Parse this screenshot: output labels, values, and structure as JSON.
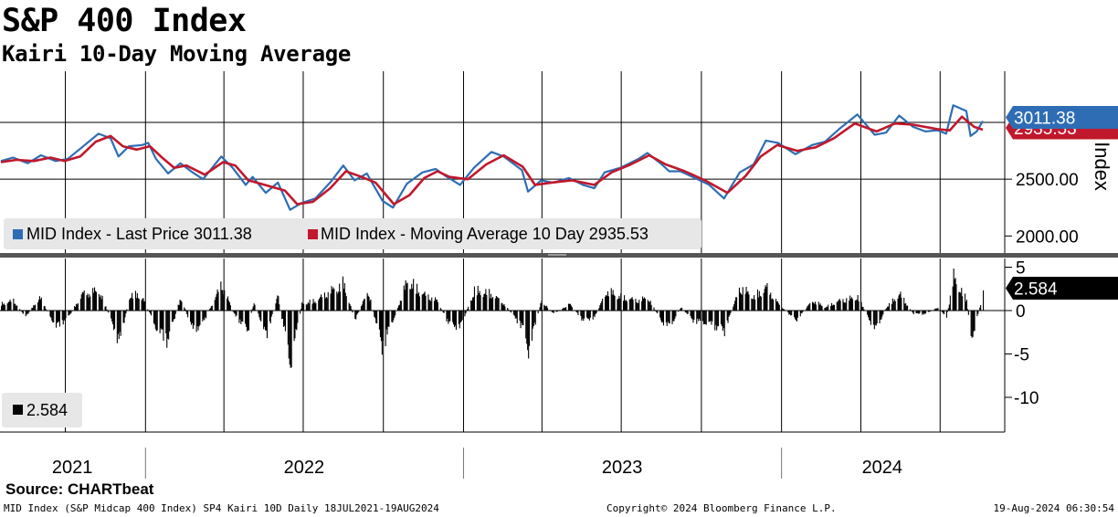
{
  "header": {
    "title": "S&P 400 Index",
    "subtitle": "Kairi 10-Day Moving Average"
  },
  "footer": {
    "source": "Source: CHARTbeat",
    "description": "MID Index (S&P Midcap 400 Index) SP4 Kairi 10D  Daily 18JUL2021-19AUG2024",
    "copyright": "Copyright© 2024 Bloomberg Finance L.P.",
    "timestamp": "19-Aug-2024 06:30:54"
  },
  "colors": {
    "price": "#2e6db4",
    "ma": "#c0182d",
    "kairi": "#000000",
    "grid": "#000000",
    "panel_divider": "#555555"
  },
  "chart_data": [
    {
      "type": "line",
      "panel": "top",
      "ylabel": "Index",
      "ylim": [
        1850,
        3450
      ],
      "yticks": [
        "2500.00",
        "2000.00"
      ],
      "ytick_values": [
        2500,
        2000
      ],
      "legend": [
        {
          "label": "MID Index - Last Price 3011.38",
          "color": "#2e6db4"
        },
        {
          "label": "MID Index - Moving Average 10 Day 2935.53",
          "color": "#c0182d"
        }
      ],
      "last_value_tags": [
        {
          "text": "3011.38",
          "value": 3011.38,
          "color": "#2e6db4"
        },
        {
          "text": "2935.53",
          "value": 2935.53,
          "color": "#c0182d"
        }
      ],
      "x_axis": {
        "start": "2021-07-18",
        "end": "2024-08-19"
      },
      "series": [
        {
          "name": "MID Index - Last Price",
          "key": "price",
          "points": [
            [
              "2021-07-19",
              2660
            ],
            [
              "2021-08-02",
              2690
            ],
            [
              "2021-08-19",
              2640
            ],
            [
              "2021-09-03",
              2710
            ],
            [
              "2021-09-20",
              2660
            ],
            [
              "2021-10-04",
              2680
            ],
            [
              "2021-10-20",
              2780
            ],
            [
              "2021-11-08",
              2900
            ],
            [
              "2021-11-22",
              2860
            ],
            [
              "2021-12-01",
              2700
            ],
            [
              "2021-12-13",
              2790
            ],
            [
              "2021-12-28",
              2800
            ],
            [
              "2022-01-04",
              2820
            ],
            [
              "2022-01-13",
              2680
            ],
            [
              "2022-01-27",
              2550
            ],
            [
              "2022-02-10",
              2640
            ],
            [
              "2022-02-24",
              2560
            ],
            [
              "2022-03-08",
              2500
            ],
            [
              "2022-03-29",
              2700
            ],
            [
              "2022-04-11",
              2600
            ],
            [
              "2022-04-26",
              2450
            ],
            [
              "2022-05-04",
              2520
            ],
            [
              "2022-05-19",
              2380
            ],
            [
              "2022-06-02",
              2470
            ],
            [
              "2022-06-16",
              2230
            ],
            [
              "2022-06-29",
              2290
            ],
            [
              "2022-07-15",
              2330
            ],
            [
              "2022-08-02",
              2480
            ],
            [
              "2022-08-16",
              2620
            ],
            [
              "2022-08-29",
              2490
            ],
            [
              "2022-09-12",
              2550
            ],
            [
              "2022-09-30",
              2310
            ],
            [
              "2022-10-12",
              2250
            ],
            [
              "2022-10-28",
              2460
            ],
            [
              "2022-11-15",
              2560
            ],
            [
              "2022-11-30",
              2590
            ],
            [
              "2022-12-13",
              2520
            ],
            [
              "2022-12-28",
              2450
            ],
            [
              "2023-01-13",
              2600
            ],
            [
              "2023-02-02",
              2740
            ],
            [
              "2023-02-16",
              2700
            ],
            [
              "2023-03-09",
              2580
            ],
            [
              "2023-03-16",
              2390
            ],
            [
              "2023-03-31",
              2490
            ],
            [
              "2023-04-14",
              2470
            ],
            [
              "2023-05-02",
              2510
            ],
            [
              "2023-05-18",
              2450
            ],
            [
              "2023-05-31",
              2420
            ],
            [
              "2023-06-12",
              2560
            ],
            [
              "2023-06-30",
              2600
            ],
            [
              "2023-07-21",
              2680
            ],
            [
              "2023-07-31",
              2730
            ],
            [
              "2023-08-15",
              2640
            ],
            [
              "2023-08-25",
              2570
            ],
            [
              "2023-09-07",
              2570
            ],
            [
              "2023-09-21",
              2520
            ],
            [
              "2023-10-10",
              2450
            ],
            [
              "2023-10-27",
              2330
            ],
            [
              "2023-11-14",
              2560
            ],
            [
              "2023-11-30",
              2630
            ],
            [
              "2023-12-14",
              2840
            ],
            [
              "2023-12-28",
              2820
            ],
            [
              "2024-01-17",
              2720
            ],
            [
              "2024-02-05",
              2800
            ],
            [
              "2024-02-20",
              2830
            ],
            [
              "2024-03-07",
              2940
            ],
            [
              "2024-03-28",
              3070
            ],
            [
              "2024-04-17",
              2890
            ],
            [
              "2024-04-30",
              2910
            ],
            [
              "2024-05-15",
              3060
            ],
            [
              "2024-05-31",
              2960
            ],
            [
              "2024-06-14",
              2920
            ],
            [
              "2024-06-28",
              2930
            ],
            [
              "2024-07-08",
              2900
            ],
            [
              "2024-07-16",
              3150
            ],
            [
              "2024-07-31",
              3100
            ],
            [
              "2024-08-05",
              2880
            ],
            [
              "2024-08-12",
              2920
            ],
            [
              "2024-08-19",
              3011.38
            ]
          ]
        },
        {
          "name": "MID Index - Moving Average 10 Day",
          "key": "ma",
          "points": [
            [
              "2021-07-19",
              2650
            ],
            [
              "2021-08-06",
              2670
            ],
            [
              "2021-08-26",
              2660
            ],
            [
              "2021-09-14",
              2690
            ],
            [
              "2021-09-30",
              2660
            ],
            [
              "2021-10-18",
              2700
            ],
            [
              "2021-11-05",
              2830
            ],
            [
              "2021-11-22",
              2880
            ],
            [
              "2021-12-06",
              2790
            ],
            [
              "2021-12-22",
              2760
            ],
            [
              "2022-01-06",
              2790
            ],
            [
              "2022-01-20",
              2690
            ],
            [
              "2022-02-03",
              2600
            ],
            [
              "2022-02-17",
              2620
            ],
            [
              "2022-03-10",
              2540
            ],
            [
              "2022-03-31",
              2650
            ],
            [
              "2022-04-14",
              2620
            ],
            [
              "2022-04-29",
              2490
            ],
            [
              "2022-05-13",
              2460
            ],
            [
              "2022-05-27",
              2430
            ],
            [
              "2022-06-10",
              2400
            ],
            [
              "2022-06-24",
              2280
            ],
            [
              "2022-07-12",
              2300
            ],
            [
              "2022-08-01",
              2420
            ],
            [
              "2022-08-19",
              2570
            ],
            [
              "2022-09-06",
              2520
            ],
            [
              "2022-09-22",
              2470
            ],
            [
              "2022-10-13",
              2280
            ],
            [
              "2022-10-31",
              2360
            ],
            [
              "2022-11-17",
              2510
            ],
            [
              "2022-12-02",
              2570
            ],
            [
              "2022-12-16",
              2520
            ],
            [
              "2023-01-06",
              2500
            ],
            [
              "2023-01-27",
              2630
            ],
            [
              "2023-02-16",
              2710
            ],
            [
              "2023-03-10",
              2610
            ],
            [
              "2023-03-24",
              2450
            ],
            [
              "2023-04-12",
              2470
            ],
            [
              "2023-05-05",
              2490
            ],
            [
              "2023-05-31",
              2450
            ],
            [
              "2023-06-20",
              2560
            ],
            [
              "2023-07-12",
              2630
            ],
            [
              "2023-08-02",
              2710
            ],
            [
              "2023-08-21",
              2630
            ],
            [
              "2023-09-12",
              2570
            ],
            [
              "2023-10-05",
              2490
            ],
            [
              "2023-10-31",
              2380
            ],
            [
              "2023-11-21",
              2530
            ],
            [
              "2023-12-08",
              2700
            ],
            [
              "2023-12-27",
              2800
            ],
            [
              "2024-01-19",
              2750
            ],
            [
              "2024-02-09",
              2780
            ],
            [
              "2024-03-01",
              2860
            ],
            [
              "2024-03-25",
              2990
            ],
            [
              "2024-04-19",
              2920
            ],
            [
              "2024-05-10",
              2990
            ],
            [
              "2024-05-31",
              2980
            ],
            [
              "2024-06-28",
              2940
            ],
            [
              "2024-07-12",
              2930
            ],
            [
              "2024-07-26",
              3050
            ],
            [
              "2024-08-09",
              2960
            ],
            [
              "2024-08-19",
              2935.53
            ]
          ]
        }
      ]
    },
    {
      "type": "bar",
      "panel": "bottom",
      "ylim": [
        -14,
        6
      ],
      "yticks": [
        "5",
        "0",
        "-5",
        "-10"
      ],
      "ytick_values": [
        5,
        0,
        -5,
        -10
      ],
      "legend": [
        {
          "label": "2.584",
          "color": "#000000"
        }
      ],
      "last_value_tags": [
        {
          "text": "2.584",
          "value": 2.584,
          "color": "#000000"
        }
      ],
      "series": [
        {
          "name": "Kairi 10D",
          "key": "kairi",
          "anchors": [
            [
              "2021-07-19",
              1
            ],
            [
              "2021-08-02",
              1.5
            ],
            [
              "2021-08-16",
              -1
            ],
            [
              "2021-09-01",
              2
            ],
            [
              "2021-09-20",
              -2.5
            ],
            [
              "2021-10-04",
              -1
            ],
            [
              "2021-10-20",
              2.5
            ],
            [
              "2021-11-08",
              3
            ],
            [
              "2021-11-24",
              -2
            ],
            [
              "2021-12-01",
              -5
            ],
            [
              "2021-12-14",
              2.5
            ],
            [
              "2021-12-28",
              2
            ],
            [
              "2022-01-14",
              -3
            ],
            [
              "2022-01-26",
              -4.5
            ],
            [
              "2022-02-10",
              2
            ],
            [
              "2022-02-24",
              -3
            ],
            [
              "2022-03-07",
              -2
            ],
            [
              "2022-03-29",
              4
            ],
            [
              "2022-04-12",
              -0.5
            ],
            [
              "2022-04-28",
              -3
            ],
            [
              "2022-05-05",
              1.5
            ],
            [
              "2022-05-19",
              -4
            ],
            [
              "2022-06-01",
              2.5
            ],
            [
              "2022-06-16",
              -8
            ],
            [
              "2022-06-29",
              1
            ],
            [
              "2022-07-15",
              1.5
            ],
            [
              "2022-08-02",
              3
            ],
            [
              "2022-08-16",
              4
            ],
            [
              "2022-08-29",
              -1.5
            ],
            [
              "2022-09-13",
              3
            ],
            [
              "2022-09-29",
              -5.5
            ],
            [
              "2022-10-13",
              -1
            ],
            [
              "2022-10-28",
              4.5
            ],
            [
              "2022-11-15",
              2.5
            ],
            [
              "2022-12-01",
              1.5
            ],
            [
              "2022-12-15",
              -2
            ],
            [
              "2022-12-28",
              -2.5
            ],
            [
              "2023-01-13",
              3
            ],
            [
              "2023-02-02",
              2.5
            ],
            [
              "2023-02-16",
              1
            ],
            [
              "2023-03-09",
              -2.5
            ],
            [
              "2023-03-16",
              -6
            ],
            [
              "2023-03-31",
              1.5
            ],
            [
              "2023-04-14",
              -0.5
            ],
            [
              "2023-05-02",
              1
            ],
            [
              "2023-05-18",
              -1.5
            ],
            [
              "2023-05-31",
              -1
            ],
            [
              "2023-06-14",
              3
            ],
            [
              "2023-06-30",
              2
            ],
            [
              "2023-07-21",
              1.5
            ],
            [
              "2023-07-31",
              2
            ],
            [
              "2023-08-15",
              -1.5
            ],
            [
              "2023-08-25",
              -2.5
            ],
            [
              "2023-09-07",
              0.5
            ],
            [
              "2023-09-21",
              -1.5
            ],
            [
              "2023-10-10",
              -2
            ],
            [
              "2023-10-27",
              -3
            ],
            [
              "2023-11-14",
              3.5
            ],
            [
              "2023-11-30",
              2
            ],
            [
              "2023-12-14",
              3.5
            ],
            [
              "2023-12-28",
              1
            ],
            [
              "2024-01-17",
              -1.5
            ],
            [
              "2024-02-05",
              1.5
            ],
            [
              "2024-02-20",
              0.5
            ],
            [
              "2024-03-07",
              1.5
            ],
            [
              "2024-03-28",
              2
            ],
            [
              "2024-04-17",
              -3
            ],
            [
              "2024-04-30",
              0.5
            ],
            [
              "2024-05-15",
              2.5
            ],
            [
              "2024-05-31",
              -0.5
            ],
            [
              "2024-06-14",
              -0.5
            ],
            [
              "2024-06-28",
              0.5
            ],
            [
              "2024-07-08",
              -1
            ],
            [
              "2024-07-16",
              5
            ],
            [
              "2024-07-31",
              1.5
            ],
            [
              "2024-08-05",
              -4.5
            ],
            [
              "2024-08-12",
              -1
            ],
            [
              "2024-08-19",
              2.584
            ]
          ]
        }
      ]
    }
  ],
  "x_axis": {
    "years": [
      "2021",
      "2022",
      "2023",
      "2024"
    ],
    "year_spans": [
      [
        "2021-07-18",
        "2021-12-31"
      ],
      [
        "2022-01-01",
        "2022-12-31"
      ],
      [
        "2023-01-01",
        "2023-12-31"
      ],
      [
        "2024-01-01",
        "2024-08-19"
      ]
    ],
    "gridline_dates": [
      "2021-10-01",
      "2022-01-01",
      "2022-04-01",
      "2022-07-01",
      "2022-10-01",
      "2023-01-01",
      "2023-04-01",
      "2023-07-01",
      "2023-10-01",
      "2024-01-01",
      "2024-04-01",
      "2024-07-01"
    ]
  }
}
